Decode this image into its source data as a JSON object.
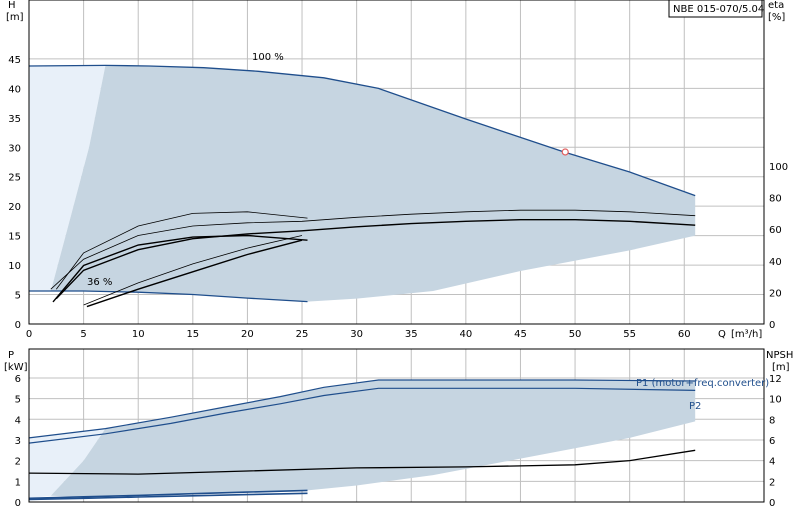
{
  "chart_data": [
    {
      "type": "line",
      "model": "NBE 015-070/5.04",
      "left_axis": {
        "name": "H",
        "unit": "[m]",
        "ticks": [
          0,
          5,
          10,
          15,
          20,
          25,
          30,
          35,
          40,
          45
        ],
        "range": [
          0,
          55
        ]
      },
      "right_axis": {
        "name": "eta",
        "unit": "[%]",
        "ticks": [
          0,
          20,
          40,
          60,
          80,
          100
        ],
        "range": [
          0,
          205
        ]
      },
      "x_axis": {
        "name": "Q",
        "unit": "[m³/h]",
        "ticks": [
          0,
          5,
          10,
          15,
          20,
          25,
          30,
          35,
          40,
          45,
          50,
          55,
          60
        ],
        "range": [
          0,
          67.3
        ]
      },
      "speed_labels": {
        "max": "100 %",
        "min": "36 %"
      },
      "grid": true,
      "series": [
        {
          "role": "h_max",
          "x": [
            0,
            7,
            11,
            16,
            21,
            27,
            32,
            40,
            49,
            55,
            61
          ],
          "y": [
            43.8,
            43.9,
            43.8,
            43.5,
            42.9,
            41.8,
            40,
            34.8,
            29.2,
            25.8,
            21.8
          ]
        },
        {
          "role": "h_min",
          "x": [
            0,
            5,
            10,
            15,
            20,
            25.5
          ],
          "y": [
            5.6,
            5.6,
            5.4,
            5.0,
            4.4,
            3.8
          ]
        },
        {
          "role": "eta_outer",
          "axis": "right",
          "x": [
            2,
            5,
            10,
            15,
            20,
            25,
            30,
            35,
            40,
            45,
            50,
            55,
            61
          ],
          "y": [
            22,
            41,
            56,
            62,
            64,
            65,
            67.5,
            69.5,
            71,
            72,
            72,
            71,
            68.5
          ]
        },
        {
          "role": "eta_inner",
          "axis": "right",
          "x": [
            2.5,
            5,
            10,
            15,
            20,
            25,
            30,
            35,
            40,
            45,
            50,
            55,
            61
          ],
          "y": [
            16,
            34,
            47,
            54,
            57,
            59,
            61.5,
            63.5,
            65,
            66,
            66,
            65,
            62.5
          ]
        },
        {
          "role": "eta_low_outer",
          "axis": "right",
          "x": [
            2.5,
            5,
            10,
            15,
            20,
            25.5
          ],
          "y": [
            22,
            45,
            62,
            70,
            71,
            67
          ]
        },
        {
          "role": "eta_low_inner",
          "axis": "right",
          "x": [
            2.2,
            5,
            10,
            15,
            20,
            25.5
          ],
          "y": [
            14,
            37,
            50,
            55,
            56,
            53
          ]
        },
        {
          "role": "eta_diag_a",
          "axis": "right",
          "x": [
            5,
            10,
            15,
            20,
            25
          ],
          "y": [
            12,
            26,
            38,
            48,
            56
          ]
        },
        {
          "role": "eta_diag_b",
          "axis": "right",
          "x": [
            5.3,
            10,
            15,
            20,
            25
          ],
          "y": [
            11,
            22,
            33,
            44,
            53
          ]
        },
        {
          "role": "operating_point",
          "x": [
            49.1
          ],
          "y": [
            29.2
          ]
        }
      ]
    },
    {
      "type": "line",
      "left_axis": {
        "name": "P",
        "unit": "[kW]",
        "ticks": [
          0,
          1,
          2,
          3,
          4,
          5,
          6
        ],
        "range": [
          0,
          7.4
        ]
      },
      "right_axis": {
        "name": "NPSH",
        "unit": "[m]",
        "ticks": [
          0,
          2,
          4,
          6,
          8,
          10,
          12
        ],
        "range": [
          0,
          14.8
        ]
      },
      "series": [
        {
          "name": "P1 (motor+freq.converter)",
          "x": [
            0,
            7,
            13,
            18,
            23,
            27,
            32,
            40,
            50,
            61
          ],
          "y": [
            3.1,
            3.55,
            4.1,
            4.6,
            5.1,
            5.55,
            5.9,
            5.9,
            5.9,
            5.85
          ]
        },
        {
          "name": "P2",
          "x": [
            0,
            7,
            13,
            18,
            23,
            27,
            32,
            40,
            50,
            61
          ],
          "y": [
            2.85,
            3.3,
            3.8,
            4.3,
            4.75,
            5.15,
            5.5,
            5.5,
            5.5,
            5.4
          ]
        },
        {
          "role": "npsh",
          "axis": "right",
          "x": [
            0,
            10,
            20,
            30,
            40,
            50,
            55,
            61
          ],
          "y": [
            2.8,
            2.7,
            3.0,
            3.3,
            3.4,
            3.6,
            4.0,
            5.0
          ]
        },
        {
          "role": "p1_min",
          "x": [
            0,
            5,
            10,
            15,
            20,
            25.5
          ],
          "y": [
            0.18,
            0.25,
            0.32,
            0.4,
            0.48,
            0.56
          ]
        },
        {
          "role": "p2_min",
          "x": [
            0,
            5,
            10,
            15,
            20,
            25.5
          ],
          "y": [
            0.12,
            0.18,
            0.24,
            0.3,
            0.36,
            0.42
          ]
        }
      ]
    }
  ],
  "colors": {
    "region": "#c6d5e1",
    "region_light": "#e8f0f9",
    "curve_blue": "#1f4e8c",
    "curve_black": "#000000",
    "grid": "#c0c0c0",
    "op_point": "#e06060"
  }
}
